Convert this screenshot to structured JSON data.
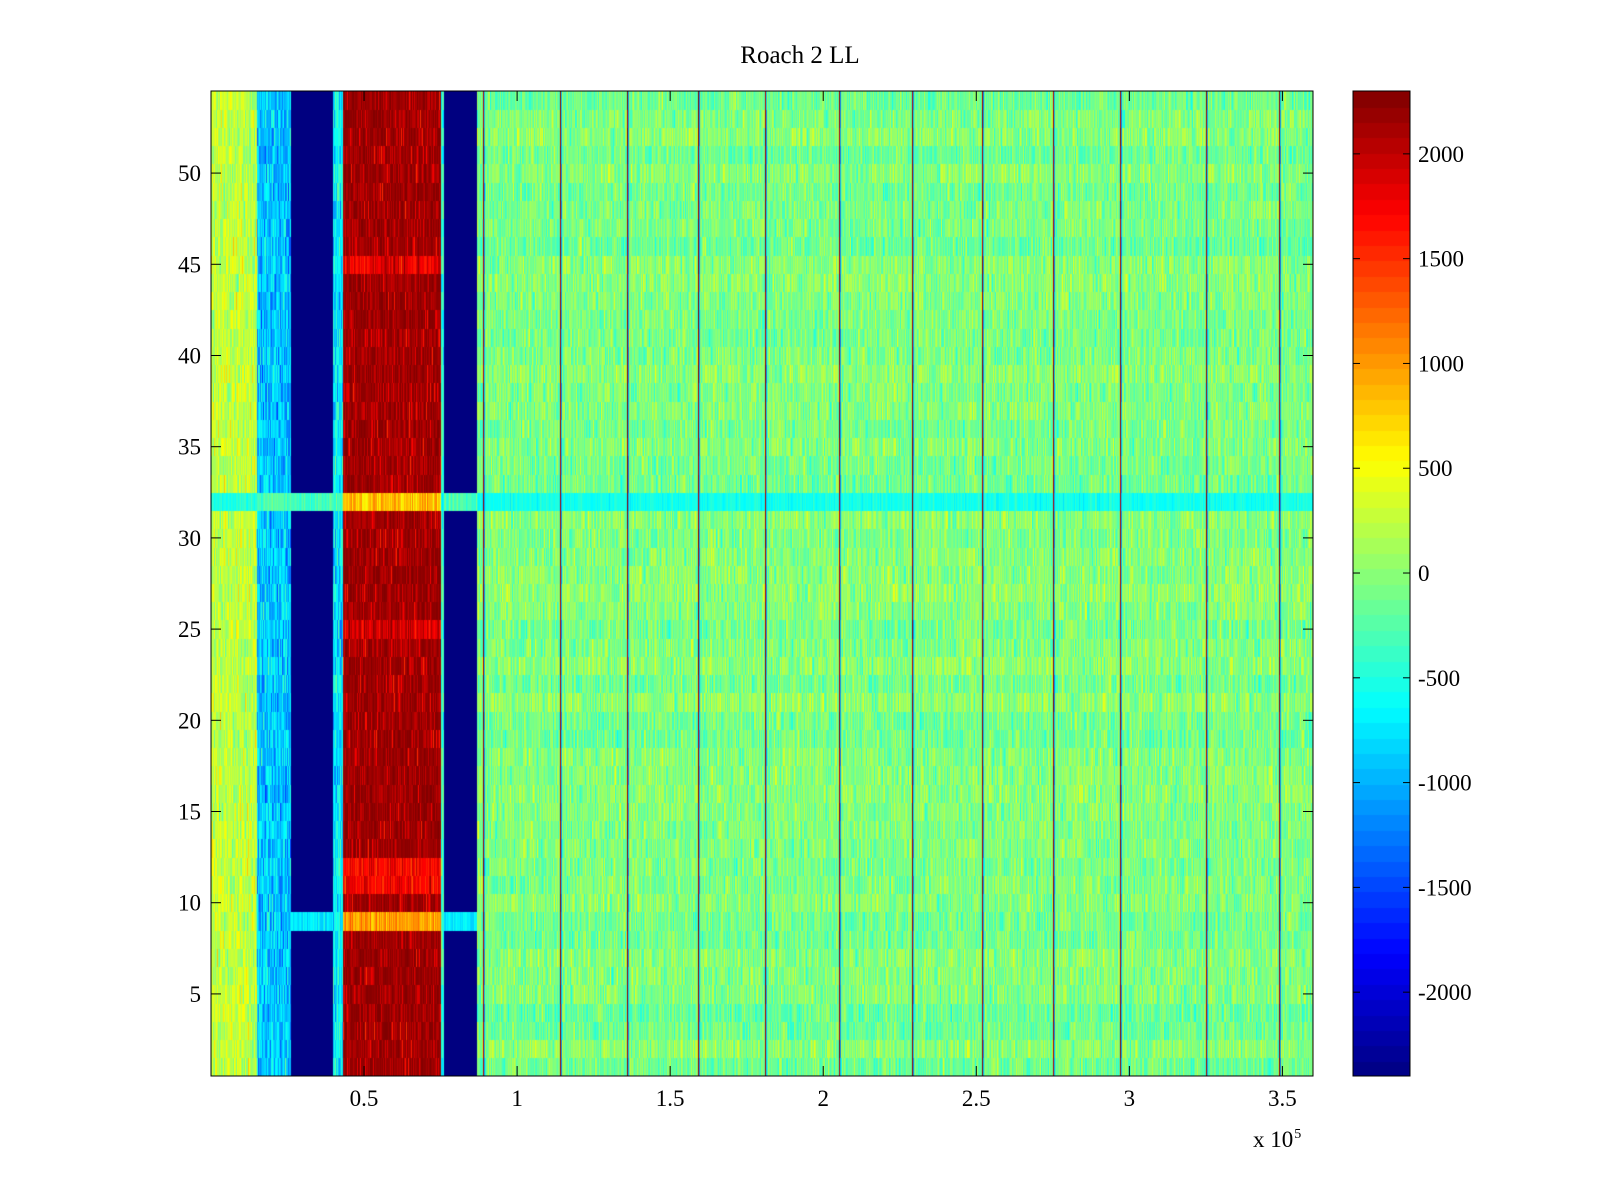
{
  "chart_data": {
    "type": "heatmap",
    "title": "Roach 2 LL",
    "xlabel": "",
    "ylabel": "",
    "x_multiplier": {
      "base": "x 10",
      "exponent": "5"
    },
    "xlim": [
      0,
      3.6
    ],
    "ylim": [
      0.5,
      54.5
    ],
    "x_ticks": [
      0.5,
      1,
      1.5,
      2,
      2.5,
      3,
      3.5
    ],
    "x_tick_labels": [
      "0.5",
      "1",
      "1.5",
      "2",
      "2.5",
      "3",
      "3.5"
    ],
    "y_ticks": [
      5,
      10,
      15,
      20,
      25,
      30,
      35,
      40,
      45,
      50
    ],
    "y_tick_labels": [
      "5",
      "10",
      "15",
      "20",
      "25",
      "30",
      "35",
      "40",
      "45",
      "50"
    ],
    "rows": 54,
    "colormap": "jet",
    "colorbar": {
      "clim": [
        -2400,
        2300
      ],
      "ticks": [
        2000,
        1500,
        1000,
        500,
        0,
        -500,
        -1000,
        -1500,
        -2000
      ],
      "tick_labels": [
        "2000",
        "1500",
        "1000",
        "500",
        "0",
        "-500",
        "-1000",
        "-1500",
        "-2000"
      ]
    },
    "bands": [
      {
        "x_range": [
          0.0,
          0.15
        ],
        "mean": 250,
        "description": "yellow-green band"
      },
      {
        "x_range": [
          0.15,
          0.26
        ],
        "mean": -900,
        "description": "light blue band"
      },
      {
        "x_range": [
          0.26,
          0.4
        ],
        "mean": -2400,
        "description": "dark blue band"
      },
      {
        "x_range": [
          0.4,
          0.43
        ],
        "mean": -700,
        "description": "cyan edge"
      },
      {
        "x_range": [
          0.43,
          0.75
        ],
        "mean": 2300,
        "description": "dark red band"
      },
      {
        "x_range": [
          0.75,
          0.76
        ],
        "mean": -400,
        "description": "narrow cyan"
      },
      {
        "x_range": [
          0.76,
          0.87
        ],
        "mean": -2400,
        "description": "dark blue band"
      },
      {
        "x_range": [
          0.87,
          3.6
        ],
        "mean": -50,
        "description": "mixed green noise"
      }
    ],
    "vertical_spikes_x": [
      0.89,
      1.14,
      1.36,
      1.59,
      1.81,
      2.05,
      2.29,
      2.52,
      2.75,
      2.97,
      3.25,
      3.49
    ],
    "anomalous_rows": [
      {
        "row": 32,
        "value_in_red_band": 800,
        "value_in_blue_band": -300,
        "background": -600
      },
      {
        "row": 9,
        "value_in_red_band": 1000,
        "value_in_blue_band": -700
      },
      {
        "row": 11,
        "value_in_red_band": 1700
      },
      {
        "row": 12,
        "value_in_red_band": 1700
      },
      {
        "row": 25,
        "value_in_red_band": 1900
      },
      {
        "row": 45,
        "value_in_red_band": 1800
      }
    ]
  }
}
